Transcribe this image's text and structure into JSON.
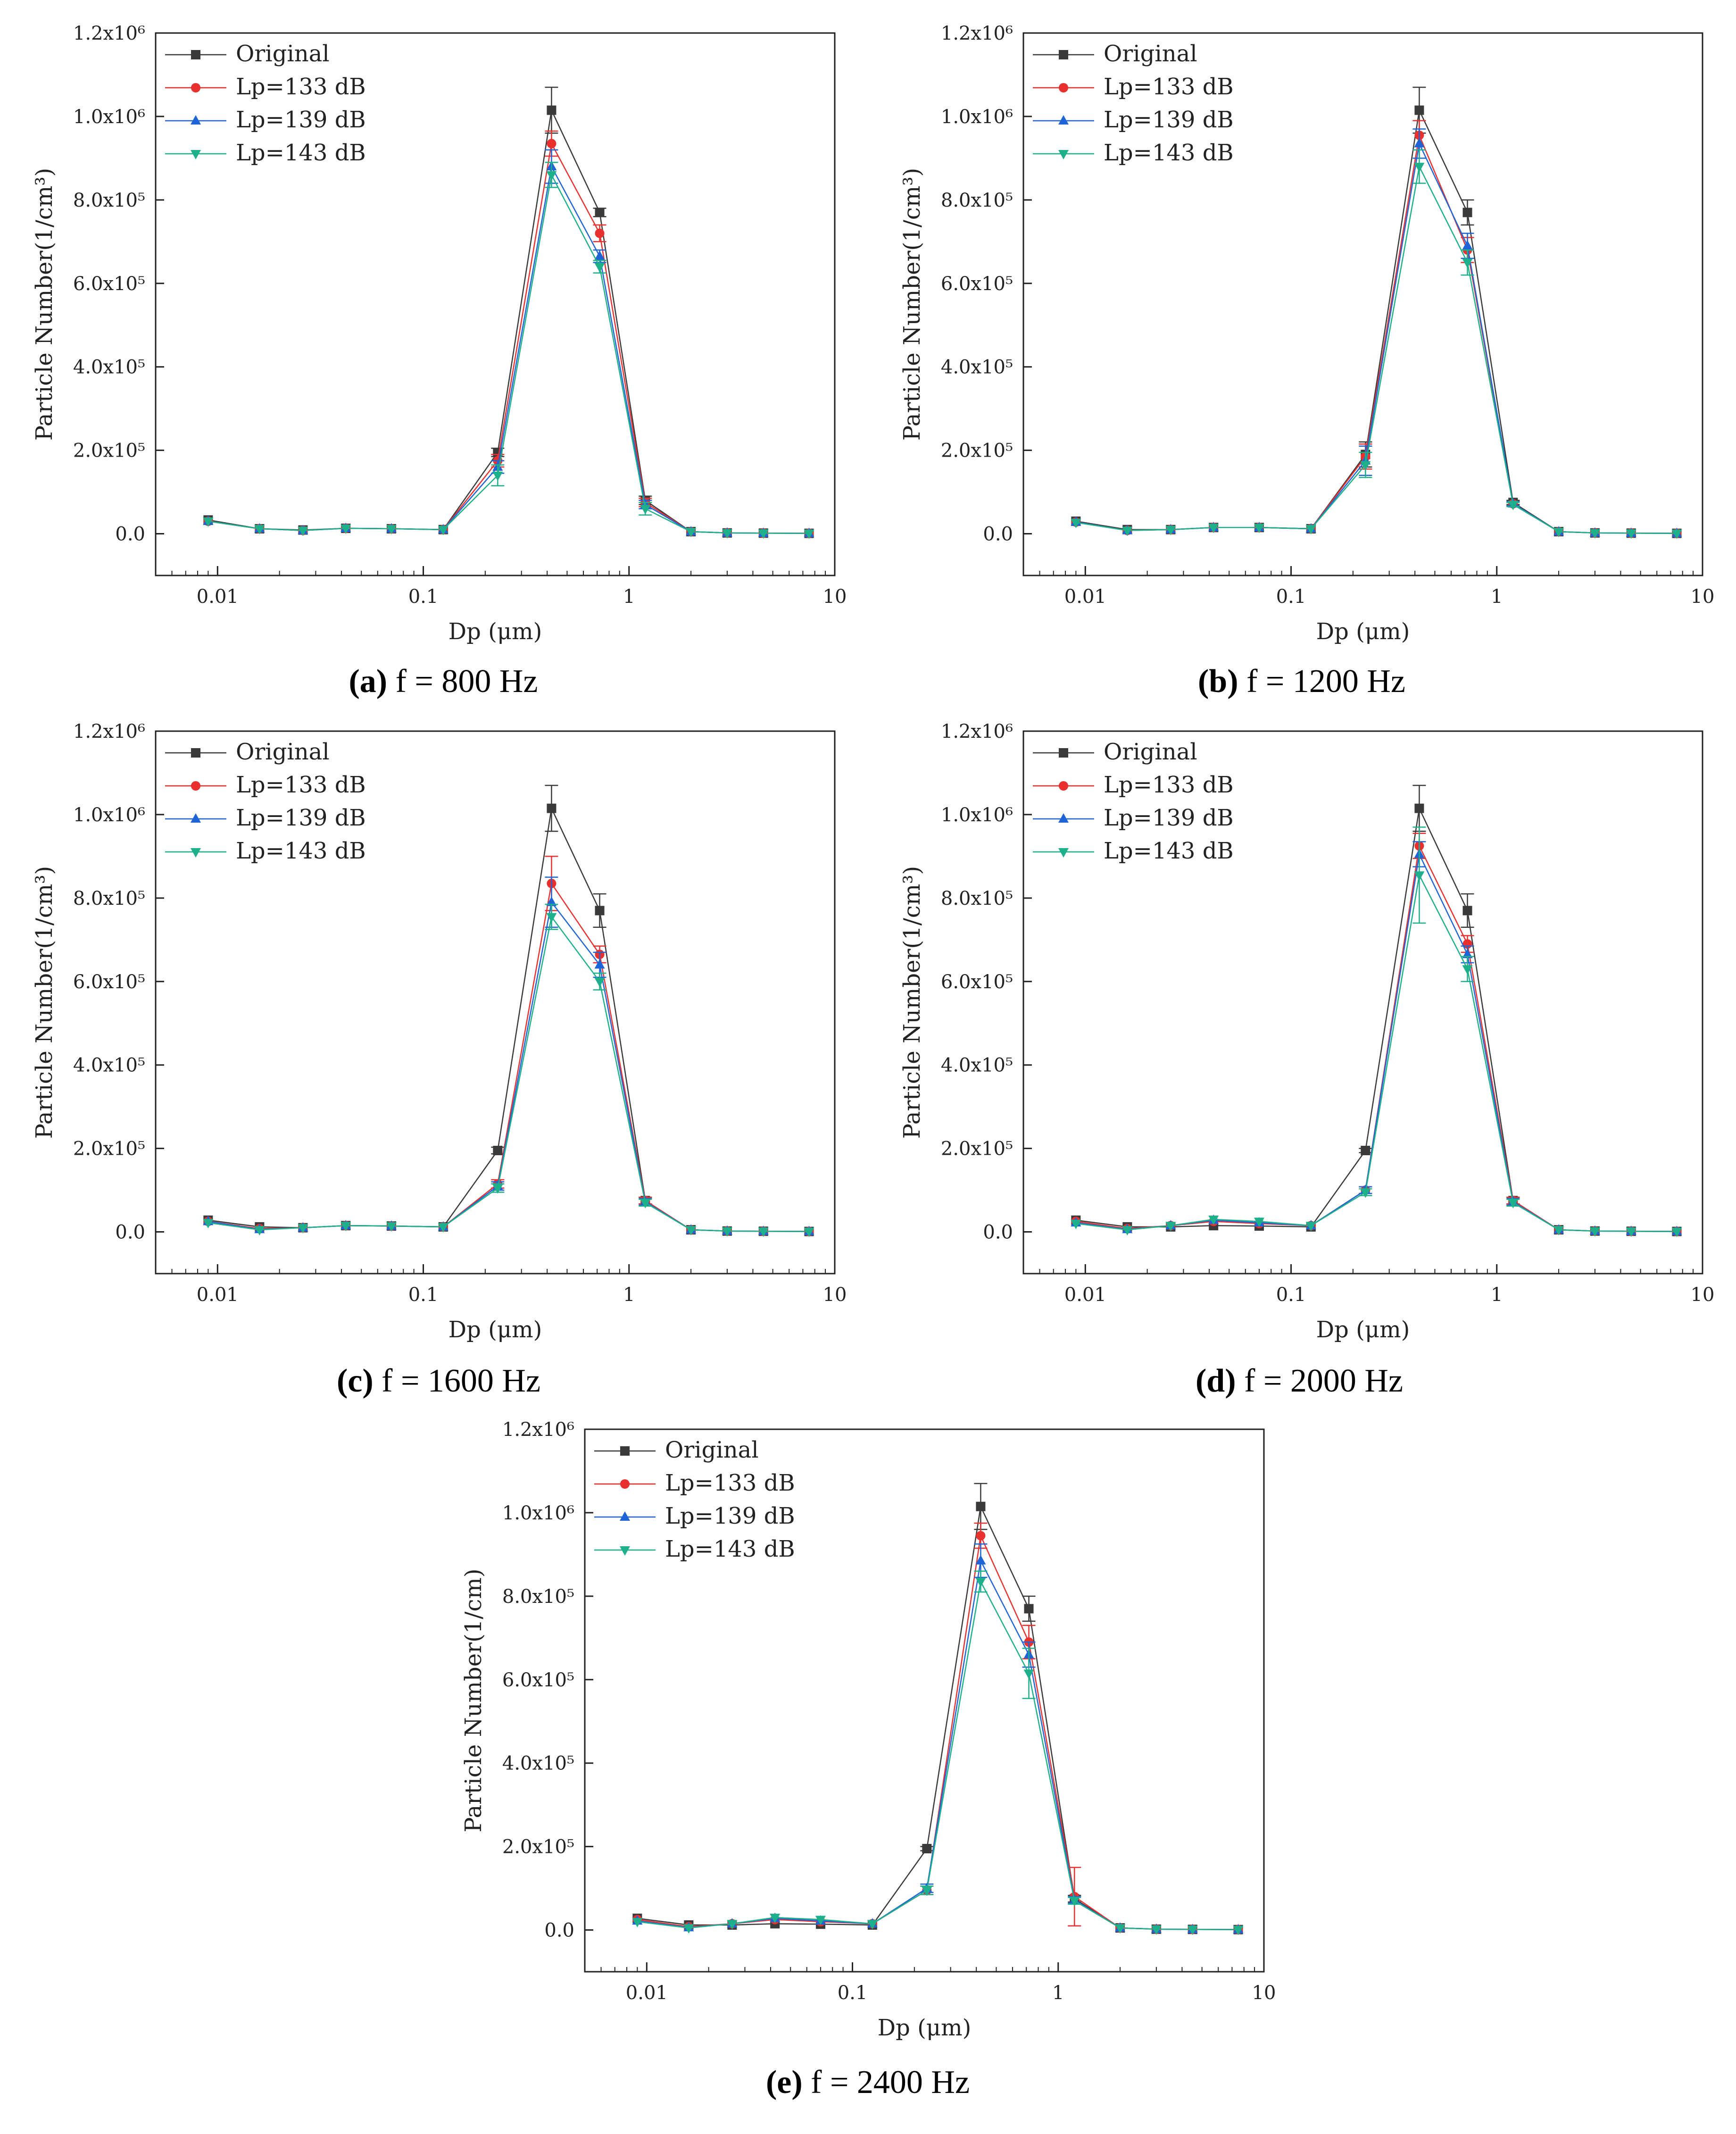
{
  "colors": {
    "Original": "#3a3a3a",
    "Lp133": "#e8312e",
    "Lp139": "#1f64d6",
    "Lp143": "#1db08a"
  },
  "chart_data": [
    {
      "type": "line",
      "caption_letter": "(a)",
      "caption_text": " f = 800 Hz",
      "xlabel": "Dp (μm)",
      "ylabel": "Particle Number(1/cm³)",
      "xscale": "log",
      "xlim": [
        0.005,
        10
      ],
      "ylim": [
        -100000,
        1200000
      ],
      "xticks": [
        "0.01",
        "0.1",
        "1",
        "10"
      ],
      "yticks": [
        "0.0",
        "2.0x10⁵",
        "4.0x10⁵",
        "6.0x10⁵",
        "8.0x10⁵",
        "1.0x10⁶",
        "1.2x10⁶"
      ],
      "legend_position": "top-left",
      "x": [
        0.009,
        0.016,
        0.026,
        0.042,
        0.07,
        0.125,
        0.23,
        0.42,
        0.72,
        1.2,
        2.0,
        3.0,
        4.5,
        7.5
      ],
      "series": [
        {
          "name": "Original",
          "color_key": "Original",
          "marker": "square",
          "values": [
            33000,
            12000,
            9000,
            13000,
            12000,
            10000,
            195000,
            1015000,
            770000,
            80000,
            5000,
            2000,
            1500,
            1000
          ],
          "err": [
            0,
            0,
            0,
            0,
            0,
            0,
            10000,
            55000,
            10000,
            10000,
            0,
            0,
            0,
            0
          ]
        },
        {
          "name": "Lp=133 dB",
          "color_key": "Lp133",
          "marker": "circle",
          "values": [
            30000,
            12000,
            8000,
            13000,
            12000,
            10000,
            175000,
            935000,
            720000,
            75000,
            5000,
            2000,
            1500,
            1000
          ],
          "err": [
            0,
            0,
            0,
            0,
            0,
            0,
            15000,
            30000,
            20000,
            10000,
            0,
            0,
            0,
            0
          ]
        },
        {
          "name": "Lp=139 dB",
          "color_key": "Lp139",
          "marker": "triangle-up",
          "values": [
            30000,
            12000,
            8000,
            13000,
            12000,
            10000,
            160000,
            880000,
            665000,
            70000,
            5000,
            2000,
            1500,
            1000
          ],
          "err": [
            0,
            0,
            0,
            0,
            0,
            0,
            15000,
            40000,
            15000,
            10000,
            0,
            0,
            0,
            0
          ]
        },
        {
          "name": "Lp=143 dB",
          "color_key": "Lp143",
          "marker": "triangle-down",
          "values": [
            30000,
            12000,
            8000,
            13000,
            12000,
            10000,
            140000,
            860000,
            640000,
            60000,
            5000,
            2000,
            1500,
            1000
          ],
          "err": [
            0,
            0,
            0,
            0,
            0,
            0,
            25000,
            30000,
            15000,
            15000,
            0,
            0,
            0,
            0
          ]
        }
      ]
    },
    {
      "type": "line",
      "caption_letter": "(b)",
      "caption_text": " f = 1200 Hz",
      "xlabel": "Dp (μm)",
      "ylabel": "Particle Number(1/cm³)",
      "xscale": "log",
      "xlim": [
        0.005,
        10
      ],
      "ylim": [
        -100000,
        1200000
      ],
      "xticks": [
        "0.01",
        "0.1",
        "1",
        "10"
      ],
      "yticks": [
        "0.0",
        "2.0x10⁵",
        "4.0x10⁵",
        "6.0x10⁵",
        "8.0x10⁵",
        "1.0x10⁶",
        "1.2x10⁶"
      ],
      "legend_position": "top-left",
      "x": [
        0.009,
        0.016,
        0.026,
        0.042,
        0.07,
        0.125,
        0.23,
        0.42,
        0.72,
        1.2,
        2.0,
        3.0,
        4.5,
        7.5
      ],
      "series": [
        {
          "name": "Original",
          "color_key": "Original",
          "marker": "square",
          "values": [
            30000,
            10000,
            10000,
            15000,
            15000,
            12000,
            190000,
            1015000,
            770000,
            75000,
            5000,
            2000,
            1500,
            1000
          ],
          "err": [
            0,
            0,
            0,
            0,
            0,
            0,
            30000,
            55000,
            30000,
            5000,
            0,
            0,
            0,
            0
          ]
        },
        {
          "name": "Lp=133 dB",
          "color_key": "Lp133",
          "marker": "circle",
          "values": [
            28000,
            8000,
            10000,
            15000,
            15000,
            12000,
            185000,
            955000,
            680000,
            72000,
            5000,
            2000,
            1500,
            1000
          ],
          "err": [
            0,
            0,
            0,
            0,
            0,
            0,
            30000,
            35000,
            30000,
            5000,
            0,
            0,
            0,
            0
          ]
        },
        {
          "name": "Lp=139 dB",
          "color_key": "Lp139",
          "marker": "triangle-up",
          "values": [
            28000,
            8000,
            10000,
            15000,
            15000,
            12000,
            175000,
            935000,
            690000,
            72000,
            5000,
            2000,
            1500,
            1000
          ],
          "err": [
            0,
            0,
            0,
            0,
            0,
            0,
            35000,
            35000,
            30000,
            5000,
            0,
            0,
            0,
            0
          ]
        },
        {
          "name": "Lp=143 dB",
          "color_key": "Lp143",
          "marker": "triangle-down",
          "values": [
            27000,
            8000,
            10000,
            15000,
            15000,
            12000,
            165000,
            880000,
            650000,
            70000,
            5000,
            2000,
            1500,
            1000
          ],
          "err": [
            0,
            0,
            0,
            0,
            0,
            0,
            30000,
            40000,
            30000,
            5000,
            0,
            0,
            0,
            0
          ]
        }
      ]
    },
    {
      "type": "line",
      "caption_letter": "(c)",
      "caption_text": " f = 1600 Hz",
      "xlabel": "Dp (μm)",
      "ylabel": "Particle Number(1/cm³)",
      "xscale": "log",
      "xlim": [
        0.005,
        10
      ],
      "ylim": [
        -100000,
        1200000
      ],
      "xticks": [
        "0.01",
        "0.1",
        "1",
        "10"
      ],
      "yticks": [
        "0.0",
        "2.0x10⁵",
        "4.0x10⁵",
        "6.0x10⁵",
        "8.0x10⁵",
        "1.0x10⁶",
        "1.2x10⁶"
      ],
      "legend_position": "top-left",
      "x": [
        0.009,
        0.016,
        0.026,
        0.042,
        0.07,
        0.125,
        0.23,
        0.42,
        0.72,
        1.2,
        2.0,
        3.0,
        4.5,
        7.5
      ],
      "series": [
        {
          "name": "Original",
          "color_key": "Original",
          "marker": "square",
          "values": [
            28000,
            12000,
            10000,
            15000,
            14000,
            12000,
            195000,
            1015000,
            770000,
            75000,
            5000,
            2000,
            1500,
            1000
          ],
          "err": [
            0,
            0,
            0,
            0,
            0,
            0,
            8000,
            55000,
            40000,
            8000,
            0,
            0,
            0,
            0
          ]
        },
        {
          "name": "Lp=133 dB",
          "color_key": "Lp133",
          "marker": "circle",
          "values": [
            25000,
            8000,
            10000,
            15000,
            14000,
            12000,
            115000,
            835000,
            665000,
            75000,
            5000,
            2000,
            1500,
            1000
          ],
          "err": [
            0,
            0,
            0,
            0,
            0,
            0,
            10000,
            65000,
            20000,
            8000,
            0,
            0,
            0,
            0
          ]
        },
        {
          "name": "Lp=139 dB",
          "color_key": "Lp139",
          "marker": "triangle-up",
          "values": [
            25000,
            6000,
            10000,
            15000,
            14000,
            12000,
            110000,
            790000,
            640000,
            72000,
            5000,
            2000,
            1500,
            1000
          ],
          "err": [
            0,
            0,
            0,
            0,
            0,
            0,
            10000,
            60000,
            30000,
            8000,
            0,
            0,
            0,
            0
          ]
        },
        {
          "name": "Lp=143 dB",
          "color_key": "Lp143",
          "marker": "triangle-down",
          "values": [
            22000,
            5000,
            10000,
            15000,
            14000,
            12000,
            105000,
            755000,
            600000,
            70000,
            5000,
            2000,
            1500,
            1000
          ],
          "err": [
            0,
            0,
            0,
            0,
            0,
            0,
            10000,
            30000,
            20000,
            8000,
            0,
            0,
            0,
            0
          ]
        }
      ]
    },
    {
      "type": "line",
      "caption_letter": "(d)",
      "caption_text": " f = 2000 Hz",
      "xlabel": "Dp (μm)",
      "ylabel": "Particle Number(1/cm³)",
      "xscale": "log",
      "xlim": [
        0.005,
        10
      ],
      "ylim": [
        -100000,
        1200000
      ],
      "xticks": [
        "0.01",
        "0.1",
        "1",
        "10"
      ],
      "yticks": [
        "0.0",
        "2.0x10⁵",
        "4.0x10⁵",
        "6.0x10⁵",
        "8.0x10⁵",
        "1.0x10⁶",
        "1.2x10⁶"
      ],
      "legend_position": "top-left",
      "x": [
        0.009,
        0.016,
        0.026,
        0.042,
        0.07,
        0.125,
        0.23,
        0.42,
        0.72,
        1.2,
        2.0,
        3.0,
        4.5,
        7.5
      ],
      "series": [
        {
          "name": "Original",
          "color_key": "Original",
          "marker": "square",
          "values": [
            28000,
            12000,
            12000,
            15000,
            14000,
            12000,
            195000,
            1015000,
            770000,
            75000,
            5000,
            2000,
            1500,
            1000
          ],
          "err": [
            0,
            0,
            0,
            0,
            0,
            0,
            5000,
            55000,
            40000,
            8000,
            0,
            0,
            0,
            0
          ]
        },
        {
          "name": "Lp=133 dB",
          "color_key": "Lp133",
          "marker": "circle",
          "values": [
            25000,
            8000,
            15000,
            25000,
            20000,
            15000,
            100000,
            925000,
            690000,
            75000,
            5000,
            2000,
            1500,
            1000
          ],
          "err": [
            0,
            0,
            0,
            0,
            0,
            0,
            8000,
            30000,
            20000,
            8000,
            0,
            0,
            0,
            0
          ]
        },
        {
          "name": "Lp=139 dB",
          "color_key": "Lp139",
          "marker": "triangle-up",
          "values": [
            22000,
            6000,
            15000,
            28000,
            22000,
            15000,
            100000,
            905000,
            665000,
            72000,
            5000,
            2000,
            1500,
            1000
          ],
          "err": [
            0,
            0,
            0,
            0,
            0,
            0,
            8000,
            30000,
            20000,
            8000,
            0,
            0,
            0,
            0
          ]
        },
        {
          "name": "Lp=143 dB",
          "color_key": "Lp143",
          "marker": "triangle-down",
          "values": [
            20000,
            5000,
            15000,
            30000,
            25000,
            15000,
            95000,
            855000,
            630000,
            70000,
            5000,
            2000,
            1500,
            1000
          ],
          "err": [
            0,
            0,
            0,
            0,
            0,
            0,
            8000,
            115000,
            30000,
            8000,
            0,
            0,
            0,
            0
          ]
        }
      ]
    },
    {
      "type": "line",
      "caption_letter": "(e)",
      "caption_text": " f = 2400 Hz",
      "xlabel": "Dp (μm)",
      "ylabel": "Particle Number(1/cm)",
      "xscale": "log",
      "xlim": [
        0.005,
        10
      ],
      "ylim": [
        -100000,
        1200000
      ],
      "xticks": [
        "0.01",
        "0.1",
        "1",
        "10"
      ],
      "yticks": [
        "0.0",
        "2.0x10⁵",
        "4.0x10⁵",
        "6.0x10⁵",
        "8.0x10⁵",
        "1.0x10⁶",
        "1.2x10⁶"
      ],
      "legend_position": "top-left",
      "x": [
        0.009,
        0.016,
        0.026,
        0.042,
        0.07,
        0.125,
        0.23,
        0.42,
        0.72,
        1.2,
        2.0,
        3.0,
        4.5,
        7.5
      ],
      "series": [
        {
          "name": "Original",
          "color_key": "Original",
          "marker": "square",
          "values": [
            28000,
            12000,
            12000,
            15000,
            14000,
            12000,
            195000,
            1015000,
            770000,
            75000,
            5000,
            2000,
            1500,
            1000
          ],
          "err": [
            0,
            0,
            0,
            0,
            0,
            0,
            5000,
            55000,
            30000,
            8000,
            0,
            0,
            0,
            0
          ]
        },
        {
          "name": "Lp=133 dB",
          "color_key": "Lp133",
          "marker": "circle",
          "values": [
            25000,
            8000,
            15000,
            25000,
            20000,
            15000,
            95000,
            945000,
            690000,
            80000,
            5000,
            2000,
            1500,
            1000
          ],
          "err": [
            0,
            0,
            0,
            0,
            0,
            0,
            10000,
            30000,
            40000,
            70000,
            0,
            0,
            0,
            0
          ]
        },
        {
          "name": "Lp=139 dB",
          "color_key": "Lp139",
          "marker": "triangle-up",
          "values": [
            22000,
            6000,
            15000,
            28000,
            22000,
            15000,
            100000,
            885000,
            660000,
            72000,
            5000,
            2000,
            1500,
            1000
          ],
          "err": [
            0,
            0,
            0,
            0,
            0,
            0,
            10000,
            40000,
            30000,
            8000,
            0,
            0,
            0,
            0
          ]
        },
        {
          "name": "Lp=143 dB",
          "color_key": "Lp143",
          "marker": "triangle-down",
          "values": [
            20000,
            5000,
            15000,
            30000,
            25000,
            15000,
            95000,
            835000,
            615000,
            70000,
            5000,
            2000,
            1500,
            1000
          ],
          "err": [
            0,
            0,
            0,
            0,
            0,
            0,
            10000,
            25000,
            60000,
            8000,
            0,
            0,
            0,
            0
          ]
        }
      ]
    }
  ]
}
